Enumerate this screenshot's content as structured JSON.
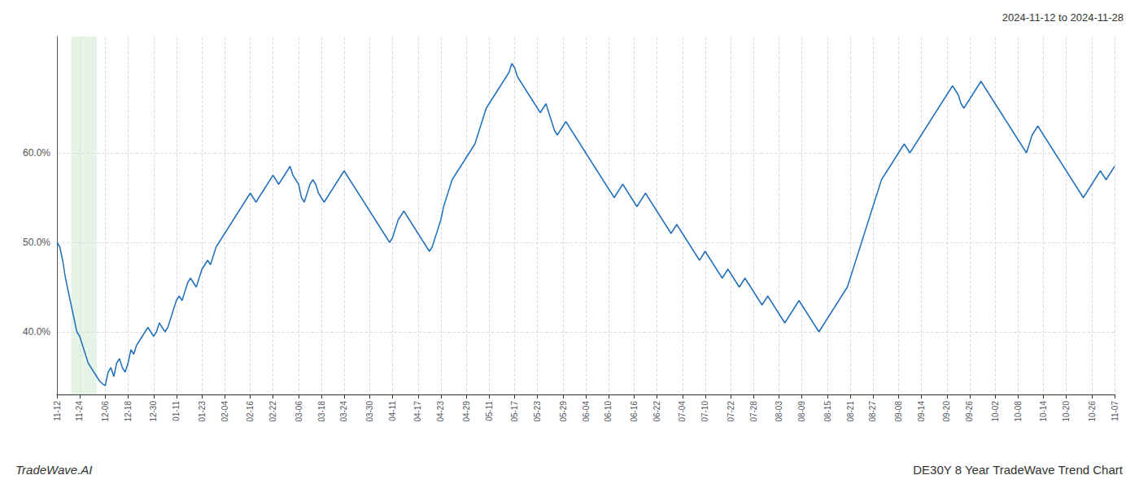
{
  "chart_data": {
    "type": "line",
    "title": "DE30Y 8 Year TradeWave Trend Chart",
    "subtitle": "2024-11-12 to 2024-11-28",
    "annotations": [
      "TradeWave.AI"
    ],
    "color": "#1f6fba",
    "grid": true,
    "ylim": [
      33,
      73
    ],
    "yticks": [
      {
        "value": 40.0,
        "label": "40.0%"
      },
      {
        "value": 50.0,
        "label": "50.0%"
      },
      {
        "value": 60.0,
        "label": "60.0%"
      }
    ],
    "span": {
      "start": 5,
      "end": 14,
      "color": "#c8e6c9"
    },
    "categories": [
      "11-12",
      null,
      null,
      null,
      null,
      null,
      null,
      null,
      "11-24",
      null,
      null,
      null,
      null,
      null,
      null,
      null,
      null,
      "12-06",
      null,
      null,
      null,
      null,
      null,
      null,
      null,
      "12-18",
      null,
      null,
      null,
      null,
      null,
      null,
      null,
      null,
      "12-30",
      null,
      null,
      null,
      null,
      null,
      null,
      null,
      "01-11",
      null,
      null,
      null,
      null,
      null,
      null,
      null,
      null,
      "01-23",
      null,
      null,
      null,
      null,
      null,
      null,
      null,
      "02-04",
      null,
      null,
      null,
      null,
      null,
      null,
      null,
      null,
      "02-16",
      null,
      null,
      null,
      null,
      null,
      null,
      null,
      "02-22",
      null,
      null,
      null,
      null,
      null,
      null,
      null,
      null,
      "03-06",
      null,
      null,
      null,
      null,
      null,
      null,
      null,
      "03-18",
      null,
      null,
      null,
      null,
      null,
      null,
      null,
      "03-24",
      null,
      null,
      null,
      null,
      null,
      null,
      null,
      null,
      "03-30",
      null,
      null,
      null,
      null,
      null,
      null,
      null,
      "04-11",
      null,
      null,
      null,
      null,
      null,
      null,
      null,
      null,
      "04-17",
      null,
      null,
      null,
      null,
      null,
      null,
      null,
      "04-23",
      null,
      null,
      null,
      null,
      null,
      null,
      null,
      null,
      "04-29",
      null,
      null,
      null,
      null,
      null,
      null,
      null,
      "05-11",
      null,
      null,
      null,
      null,
      null,
      null,
      null,
      null,
      "05-17",
      null,
      null,
      null,
      null,
      null,
      null,
      null,
      "05-23",
      null,
      null,
      null,
      null,
      null,
      null,
      null,
      null,
      "05-29",
      null,
      null,
      null,
      null,
      null,
      null,
      null,
      "06-04",
      null,
      null,
      null,
      null,
      null,
      null,
      null,
      "06-10",
      null,
      null,
      null,
      null,
      null,
      null,
      null,
      null,
      "06-16",
      null,
      null,
      null,
      null,
      null,
      null,
      null,
      "06-22",
      null,
      null,
      null,
      null,
      null,
      null,
      null,
      null,
      "07-04",
      null,
      null,
      null,
      null,
      null,
      null,
      null,
      "07-10",
      null,
      null,
      null,
      null,
      null,
      null,
      null,
      null,
      "07-22",
      null,
      null,
      null,
      null,
      null,
      null,
      null,
      "07-28",
      null,
      null,
      null,
      null,
      null,
      null,
      null,
      null,
      "08-03",
      null,
      null,
      null,
      null,
      null,
      null,
      null,
      "08-09",
      null,
      null,
      null,
      null,
      null,
      null,
      null,
      null,
      "08-15",
      null,
      null,
      null,
      null,
      null,
      null,
      null,
      "08-21",
      null,
      null,
      null,
      null,
      null,
      null,
      null,
      "08-27",
      null,
      null,
      null,
      null,
      null,
      null,
      null,
      null,
      "09-08",
      null,
      null,
      null,
      null,
      null,
      null,
      null,
      "09-14",
      null,
      null,
      null,
      null,
      null,
      null,
      null,
      null,
      "09-20",
      null,
      null,
      null,
      null,
      null,
      null,
      null,
      "09-26",
      null,
      null,
      null,
      null,
      null,
      null,
      null,
      null,
      "10-02",
      null,
      null,
      null,
      null,
      null,
      null,
      null,
      "10-08",
      null,
      null,
      null,
      null,
      null,
      null,
      null,
      null,
      "10-14",
      null,
      null,
      null,
      null,
      null,
      null,
      null,
      "10-20",
      null,
      null,
      null,
      null,
      null,
      null,
      null,
      null,
      "10-26",
      null,
      null,
      null,
      null,
      null,
      null,
      null,
      "11-07"
    ],
    "values": [
      50.0,
      49.5,
      48.0,
      46.0,
      44.5,
      43.0,
      41.5,
      40.0,
      39.5,
      38.5,
      37.5,
      36.5,
      36.0,
      35.5,
      35.0,
      34.5,
      34.2,
      34.0,
      35.5,
      36.0,
      35.0,
      36.5,
      37.0,
      36.0,
      35.5,
      36.5,
      38.0,
      37.5,
      38.5,
      39.0,
      39.5,
      40.0,
      40.5,
      40.0,
      39.5,
      40.0,
      41.0,
      40.5,
      40.0,
      40.5,
      41.5,
      42.5,
      43.5,
      44.0,
      43.5,
      44.5,
      45.5,
      46.0,
      45.5,
      45.0,
      46.0,
      47.0,
      47.5,
      48.0,
      47.5,
      48.5,
      49.5,
      50.0,
      50.5,
      51.0,
      51.5,
      52.0,
      52.5,
      53.0,
      53.5,
      54.0,
      54.5,
      55.0,
      55.5,
      55.0,
      54.5,
      55.0,
      55.5,
      56.0,
      56.5,
      57.0,
      57.5,
      57.0,
      56.5,
      57.0,
      57.5,
      58.0,
      58.5,
      57.5,
      57.0,
      56.5,
      55.0,
      54.5,
      55.5,
      56.5,
      57.0,
      56.5,
      55.5,
      55.0,
      54.5,
      55.0,
      55.5,
      56.0,
      56.5,
      57.0,
      57.5,
      58.0,
      57.5,
      57.0,
      56.5,
      56.0,
      55.5,
      55.0,
      54.5,
      54.0,
      53.5,
      53.0,
      52.5,
      52.0,
      51.5,
      51.0,
      50.5,
      50.0,
      50.5,
      51.5,
      52.5,
      53.0,
      53.5,
      53.0,
      52.5,
      52.0,
      51.5,
      51.0,
      50.5,
      50.0,
      49.5,
      49.0,
      49.5,
      50.5,
      51.5,
      52.5,
      54.0,
      55.0,
      56.0,
      57.0,
      57.5,
      58.0,
      58.5,
      59.0,
      59.5,
      60.0,
      60.5,
      61.0,
      62.0,
      63.0,
      64.0,
      65.0,
      65.5,
      66.0,
      66.5,
      67.0,
      67.5,
      68.0,
      68.5,
      69.0,
      70.0,
      69.5,
      68.5,
      68.0,
      67.5,
      67.0,
      66.5,
      66.0,
      65.5,
      65.0,
      64.5,
      65.0,
      65.5,
      64.5,
      63.5,
      62.5,
      62.0,
      62.5,
      63.0,
      63.5,
      63.0,
      62.5,
      62.0,
      61.5,
      61.0,
      60.5,
      60.0,
      59.5,
      59.0,
      58.5,
      58.0,
      57.5,
      57.0,
      56.5,
      56.0,
      55.5,
      55.0,
      55.5,
      56.0,
      56.5,
      56.0,
      55.5,
      55.0,
      54.5,
      54.0,
      54.5,
      55.0,
      55.5,
      55.0,
      54.5,
      54.0,
      53.5,
      53.0,
      52.5,
      52.0,
      51.5,
      51.0,
      51.5,
      52.0,
      51.5,
      51.0,
      50.5,
      50.0,
      49.5,
      49.0,
      48.5,
      48.0,
      48.5,
      49.0,
      48.5,
      48.0,
      47.5,
      47.0,
      46.5,
      46.0,
      46.5,
      47.0,
      46.5,
      46.0,
      45.5,
      45.0,
      45.5,
      46.0,
      45.5,
      45.0,
      44.5,
      44.0,
      43.5,
      43.0,
      43.5,
      44.0,
      43.5,
      43.0,
      42.5,
      42.0,
      41.5,
      41.0,
      41.5,
      42.0,
      42.5,
      43.0,
      43.5,
      43.0,
      42.5,
      42.0,
      41.5,
      41.0,
      40.5,
      40.0,
      40.5,
      41.0,
      41.5,
      42.0,
      42.5,
      43.0,
      43.5,
      44.0,
      44.5,
      45.0,
      46.0,
      47.0,
      48.0,
      49.0,
      50.0,
      51.0,
      52.0,
      53.0,
      54.0,
      55.0,
      56.0,
      57.0,
      57.5,
      58.0,
      58.5,
      59.0,
      59.5,
      60.0,
      60.5,
      61.0,
      60.5,
      60.0,
      60.5,
      61.0,
      61.5,
      62.0,
      62.5,
      63.0,
      63.5,
      64.0,
      64.5,
      65.0,
      65.5,
      66.0,
      66.5,
      67.0,
      67.5,
      67.0,
      66.5,
      65.5,
      65.0,
      65.5,
      66.0,
      66.5,
      67.0,
      67.5,
      68.0,
      67.5,
      67.0,
      66.5,
      66.0,
      65.5,
      65.0,
      64.5,
      64.0,
      63.5,
      63.0,
      62.5,
      62.0,
      61.5,
      61.0,
      60.5,
      60.0,
      61.0,
      62.0,
      62.5,
      63.0,
      62.5,
      62.0,
      61.5,
      61.0,
      60.5,
      60.0,
      59.5,
      59.0,
      58.5,
      58.0,
      57.5,
      57.0,
      56.5,
      56.0,
      55.5,
      55.0,
      55.5,
      56.0,
      56.5,
      57.0,
      57.5,
      58.0,
      57.5,
      57.0,
      57.5,
      58.0,
      58.5
    ]
  }
}
